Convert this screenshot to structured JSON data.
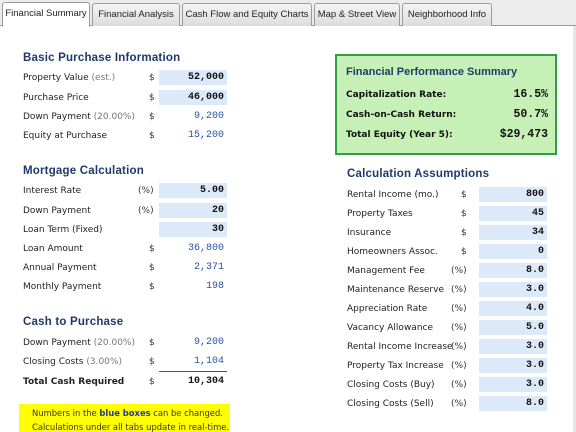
{
  "tabs": [
    {
      "label": "Financial Summary",
      "active": true
    },
    {
      "label": "Financial Analysis",
      "active": false
    },
    {
      "label": "Cash Flow and Equity Charts",
      "active": false
    },
    {
      "label": "Map & Street View",
      "active": false
    },
    {
      "label": "Neighborhood Info",
      "active": false
    }
  ],
  "basic": {
    "title": "Basic Purchase Information",
    "property_value": {
      "label": "Property Value",
      "note": "(est.)",
      "unit": "$",
      "value": "52,000"
    },
    "purchase_price": {
      "label": "Purchase Price",
      "unit": "$",
      "value": "46,000"
    },
    "down_payment": {
      "label": "Down Payment",
      "note": "(20.00%)",
      "unit": "$",
      "value": "9,200"
    },
    "equity": {
      "label": "Equity at Purchase",
      "unit": "$",
      "value": "15,200"
    }
  },
  "mortgage": {
    "title": "Mortgage Calculation",
    "interest_rate": {
      "label": "Interest Rate",
      "unit": "(%)",
      "value": "5.00"
    },
    "down_payment": {
      "label": "Down Payment",
      "unit": "(%)",
      "value": "20"
    },
    "loan_term": {
      "label": "Loan Term (Fixed)",
      "value": "30"
    },
    "loan_amount": {
      "label": "Loan Amount",
      "unit": "$",
      "value": "36,800"
    },
    "annual_payment": {
      "label": "Annual Payment",
      "unit": "$",
      "value": "2,371"
    },
    "monthly_payment": {
      "label": "Monthly Payment",
      "unit": "$",
      "value": "198"
    }
  },
  "cash": {
    "title": "Cash to Purchase",
    "down_payment": {
      "label": "Down Payment",
      "note": "(20.00%)",
      "unit": "$",
      "value": "9,200"
    },
    "closing_costs": {
      "label": "Closing Costs",
      "note": "(3.00%)",
      "unit": "$",
      "value": "1,104"
    },
    "total": {
      "label": "Total Cash Required",
      "unit": "$",
      "value": "10,304"
    }
  },
  "summary": {
    "title": "Financial Performance Summary",
    "cap_rate": {
      "label": "Capitalization Rate:",
      "value": "16.5%"
    },
    "coc": {
      "label": "Cash-on-Cash Return:",
      "value": "50.7%"
    },
    "equity": {
      "label": "Total Equity (Year 5):",
      "value": "$29,473"
    }
  },
  "assumptions": {
    "title": "Calculation Assumptions",
    "items": [
      {
        "label": "Rental Income (mo.)",
        "unit": "$",
        "value": "800"
      },
      {
        "label": "Property Taxes",
        "unit": "$",
        "value": "45"
      },
      {
        "label": "Insurance",
        "unit": "$",
        "value": "34"
      },
      {
        "label": "Homeowners Assoc.",
        "unit": "$",
        "value": "0"
      },
      {
        "label": "Management Fee",
        "unit": "(%)",
        "value": "8.0"
      },
      {
        "label": "Maintenance Reserve",
        "unit": "(%)",
        "value": "3.0"
      },
      {
        "label": "Appreciation Rate",
        "unit": "(%)",
        "value": "4.0"
      },
      {
        "label": "Vacancy Allowance",
        "unit": "(%)",
        "value": "5.0"
      },
      {
        "label": "Rental Income Increase",
        "unit": "(%)",
        "value": "3.0"
      },
      {
        "label": "Property Tax Increase",
        "unit": "(%)",
        "value": "3.0"
      },
      {
        "label": "Closing Costs (Buy)",
        "unit": "(%)",
        "value": "3.0"
      },
      {
        "label": "Closing Costs (Sell)",
        "unit": "(%)",
        "value": "8.0"
      }
    ]
  },
  "note": {
    "line1_pre": "Numbers in the ",
    "line1_emph": "blue boxes",
    "line1_post": " can be changed.",
    "line2": "Calculations under all tabs update in real-time."
  },
  "colors": {
    "input_bg": "#dce9f8",
    "calc_text": "#2952a3",
    "section_title": "#1f3a6a",
    "summary_bg": "#c7f0b6",
    "summary_border": "#2ea043",
    "note_bg": "#ffff00"
  }
}
